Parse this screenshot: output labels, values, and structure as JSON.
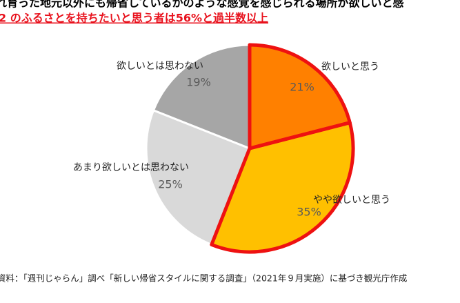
{
  "chart_data": {
    "type": "pie",
    "title": "れ育った地元以外にも帰省しているかのような感覚を感じられる場所が欲しいと感",
    "subtitle": "2 のふるさとを持ちたいと思う者は56%と過半数以上",
    "categories": [
      "欲しいと思う",
      "やや欲しいと思う",
      "あまり欲しいとは思わない",
      "欲しいとは思わない"
    ],
    "values": [
      21,
      35,
      25,
      19
    ],
    "value_labels": [
      "21%",
      "35%",
      "25%",
      "19%"
    ],
    "colors": [
      "#ff8000",
      "#ffc000",
      "#d9d9d9",
      "#a6a6a6"
    ],
    "outlined": [
      true,
      true,
      false,
      false
    ],
    "outline_color": "#ee1111",
    "source": "資料：「週刊じゃらん」調べ「新しい帰省スタイルに関する調査」（2021年９月実施）に基づき観光庁作成"
  }
}
